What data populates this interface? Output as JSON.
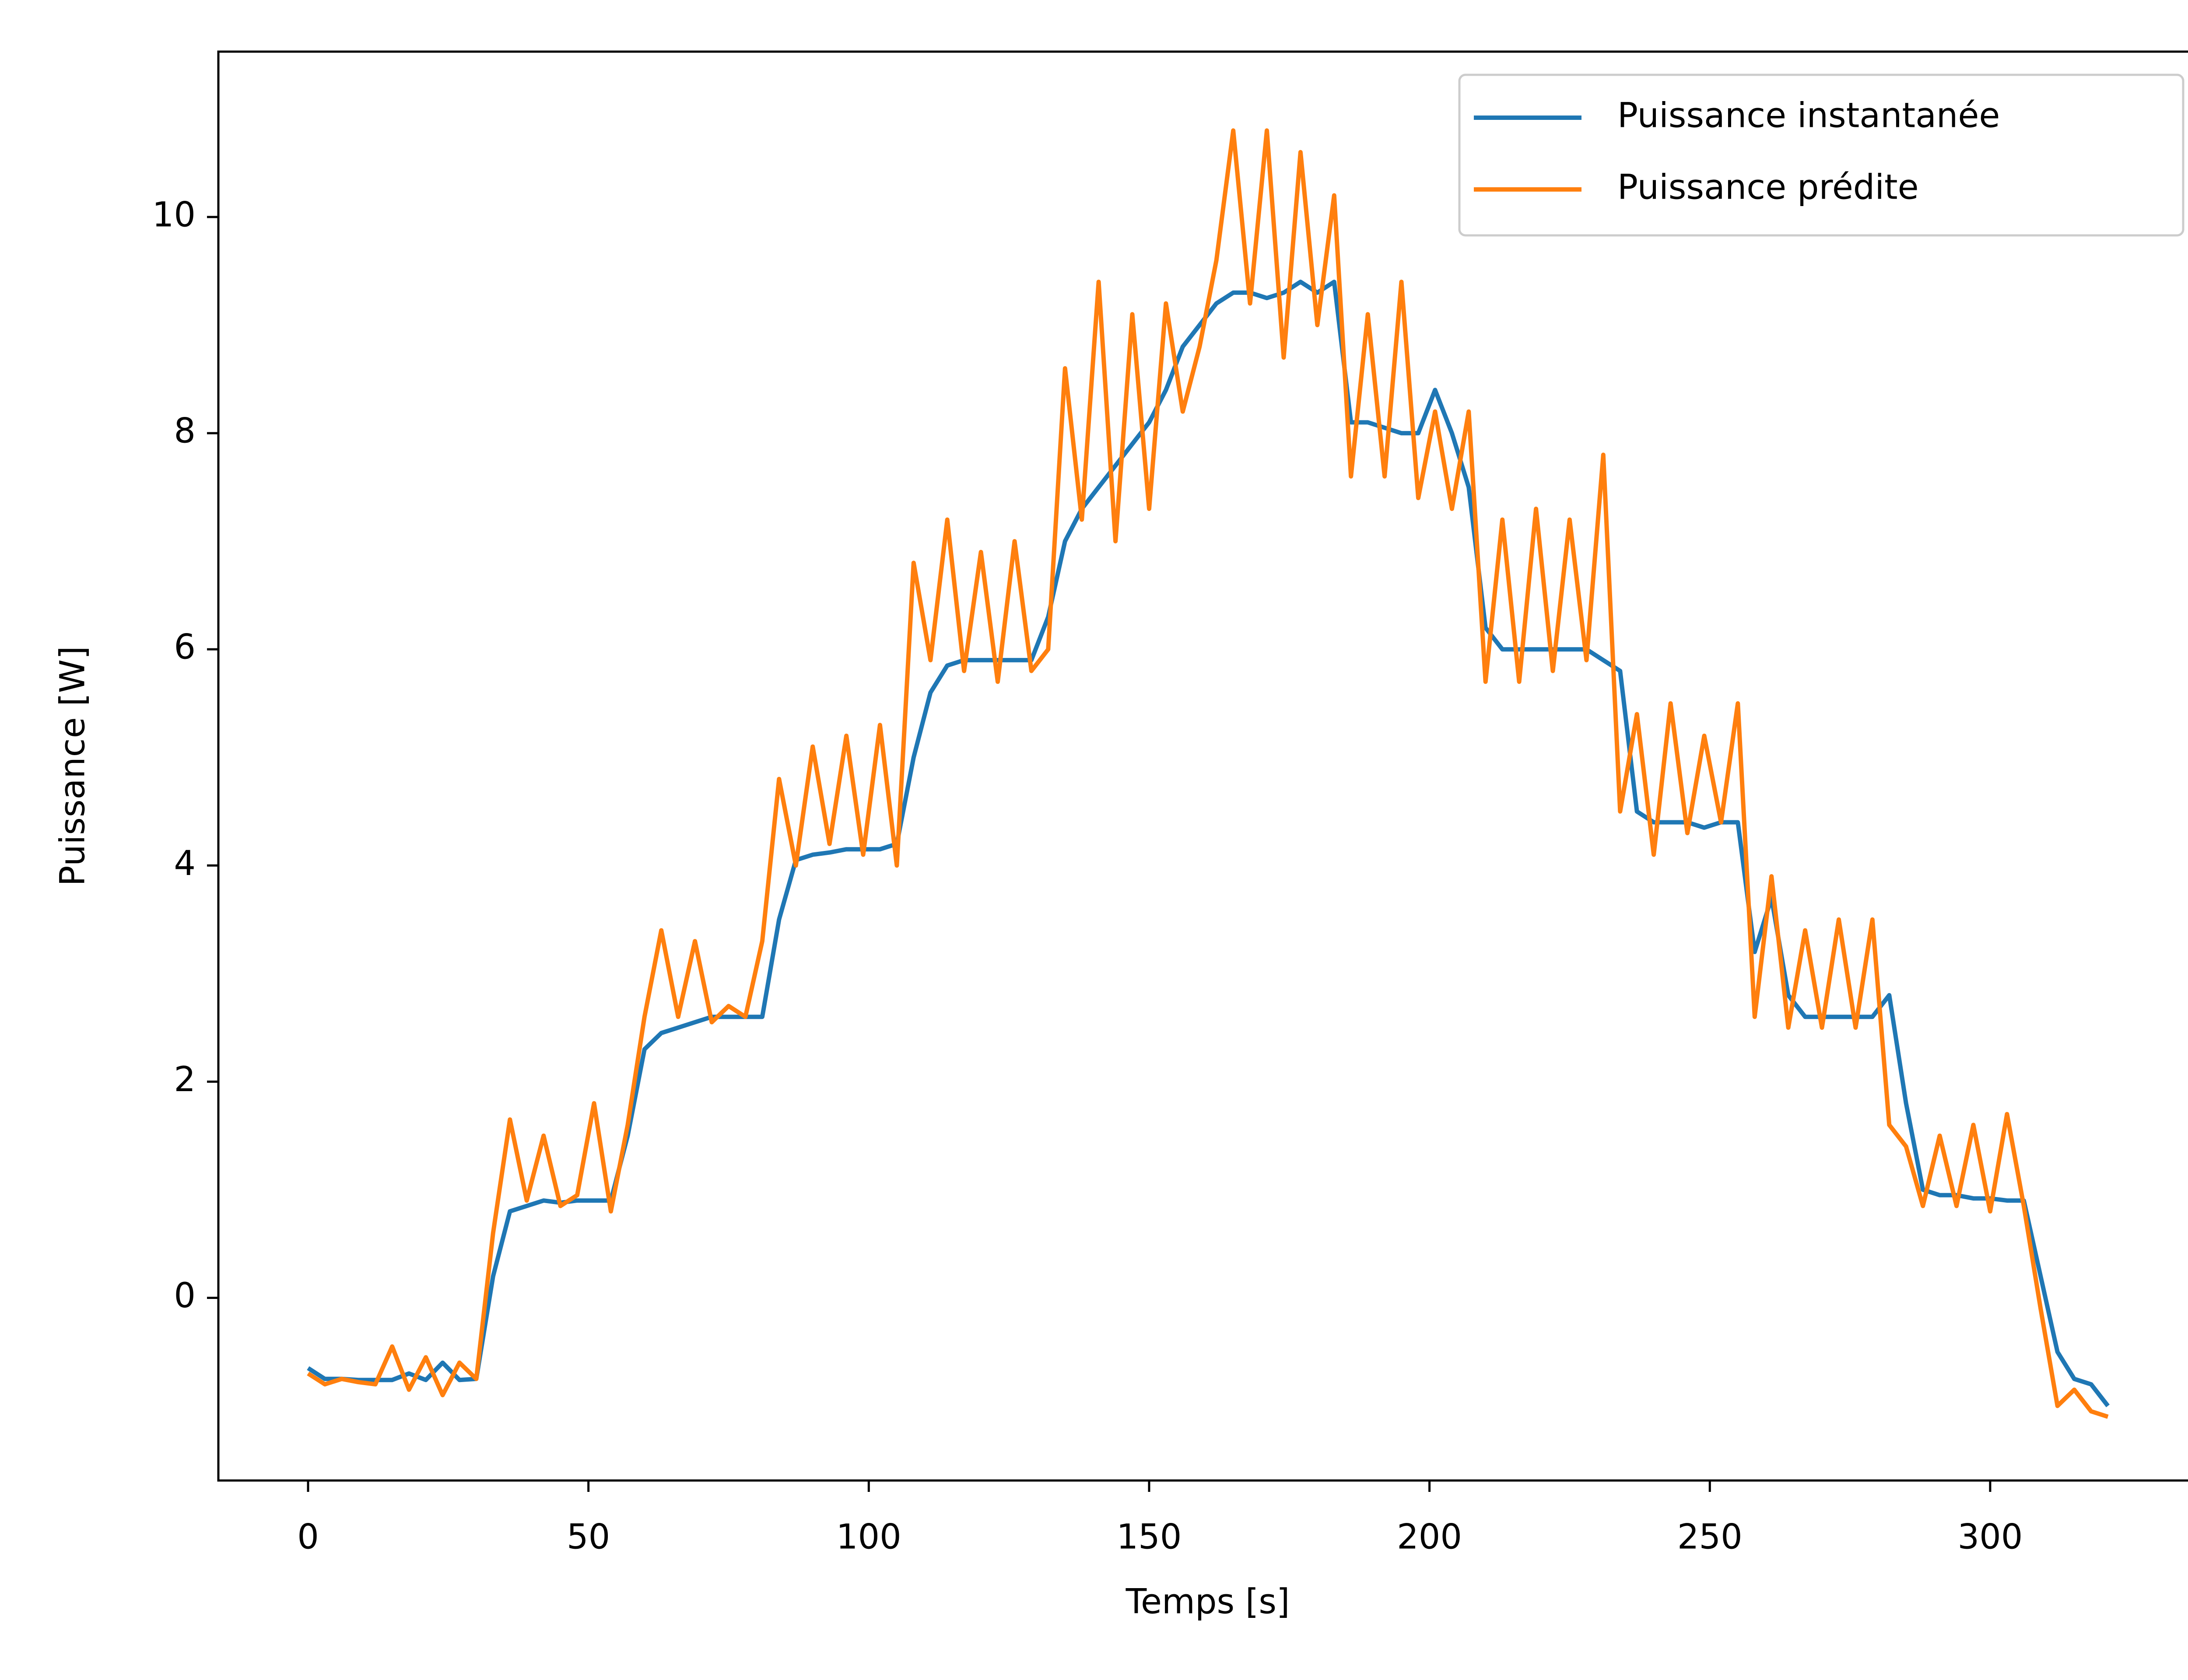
{
  "chart_data": {
    "type": "line",
    "x_label": "Temps [s]",
    "y_label": "Puissance [W]",
    "x": [
      0,
      3,
      6,
      9,
      12,
      15,
      18,
      21,
      24,
      27,
      30,
      33,
      36,
      39,
      42,
      45,
      48,
      51,
      54,
      57,
      60,
      63,
      66,
      69,
      72,
      75,
      78,
      81,
      84,
      87,
      90,
      93,
      96,
      99,
      102,
      105,
      108,
      111,
      114,
      117,
      120,
      123,
      126,
      129,
      132,
      135,
      138,
      141,
      144,
      147,
      150,
      153,
      156,
      159,
      162,
      165,
      168,
      171,
      174,
      177,
      180,
      183,
      186,
      189,
      192,
      195,
      198,
      201,
      204,
      207,
      210,
      213,
      216,
      219,
      222,
      225,
      228,
      231,
      234,
      237,
      240,
      243,
      246,
      249,
      252,
      255,
      258,
      261,
      264,
      267,
      270,
      273,
      276,
      279,
      282,
      285,
      288,
      291,
      294,
      297,
      300,
      303,
      306,
      309,
      312,
      315,
      318,
      321
    ],
    "series": [
      {
        "name": "Puissance instantanée",
        "color": "#1f77b4",
        "values": [
          -0.65,
          -0.75,
          -0.75,
          -0.76,
          -0.76,
          -0.76,
          -0.7,
          -0.76,
          -0.6,
          -0.76,
          -0.75,
          0.2,
          0.8,
          0.85,
          0.9,
          0.88,
          0.9,
          0.9,
          0.9,
          1.5,
          2.3,
          2.45,
          2.5,
          2.55,
          2.6,
          2.6,
          2.6,
          2.6,
          3.5,
          4.05,
          4.1,
          4.12,
          4.15,
          4.15,
          4.15,
          4.2,
          5.0,
          5.6,
          5.85,
          5.9,
          5.9,
          5.9,
          5.9,
          5.9,
          6.3,
          7.0,
          7.3,
          7.5,
          7.7,
          7.9,
          8.1,
          8.4,
          8.8,
          9.0,
          9.2,
          9.3,
          9.3,
          9.25,
          9.3,
          9.4,
          9.3,
          9.4,
          8.1,
          8.1,
          8.05,
          8.0,
          8.0,
          8.4,
          8.0,
          7.5,
          6.2,
          6.0,
          6.0,
          6.0,
          6.0,
          6.0,
          6.0,
          5.9,
          5.8,
          4.5,
          4.4,
          4.4,
          4.4,
          4.35,
          4.4,
          4.4,
          3.2,
          3.7,
          2.8,
          2.6,
          2.6,
          2.6,
          2.6,
          2.6,
          2.8,
          1.8,
          1.0,
          0.95,
          0.95,
          0.92,
          0.92,
          0.9,
          0.9,
          0.2,
          -0.5,
          -0.75,
          -0.8,
          -1.0
        ]
      },
      {
        "name": "Puissance prédite",
        "color": "#ff7f0e",
        "values": [
          -0.7,
          -0.8,
          -0.75,
          -0.78,
          -0.8,
          -0.45,
          -0.85,
          -0.55,
          -0.9,
          -0.6,
          -0.75,
          0.6,
          1.65,
          0.9,
          1.5,
          0.85,
          0.95,
          1.8,
          0.8,
          1.6,
          2.6,
          3.4,
          2.6,
          3.3,
          2.55,
          2.7,
          2.6,
          3.3,
          4.8,
          4.0,
          5.1,
          4.2,
          5.2,
          4.1,
          5.3,
          4.0,
          6.8,
          5.9,
          7.2,
          5.8,
          6.9,
          5.7,
          7.0,
          5.8,
          6.0,
          8.6,
          7.2,
          9.4,
          7.0,
          9.1,
          7.3,
          9.2,
          8.2,
          8.8,
          9.6,
          10.8,
          9.2,
          10.8,
          8.7,
          10.6,
          9.0,
          10.2,
          7.6,
          9.1,
          7.6,
          9.4,
          7.4,
          8.2,
          7.3,
          8.2,
          5.7,
          7.2,
          5.7,
          7.3,
          5.8,
          7.2,
          5.9,
          7.8,
          4.5,
          5.4,
          4.1,
          5.5,
          4.3,
          5.2,
          4.4,
          5.5,
          2.6,
          3.9,
          2.5,
          3.4,
          2.5,
          3.5,
          2.5,
          3.5,
          1.6,
          1.4,
          0.85,
          1.5,
          0.85,
          1.6,
          0.8,
          1.7,
          0.85,
          -0.1,
          -1.0,
          -0.85,
          -1.05,
          -1.1
        ]
      }
    ],
    "xlim": [
      -16,
      337
    ],
    "ylim": [
      -1.69,
      11.53
    ],
    "xticks": [
      0,
      50,
      100,
      150,
      200,
      250,
      300
    ],
    "yticks": [
      0,
      2,
      4,
      6,
      8,
      10
    ],
    "legend": "upper right"
  }
}
